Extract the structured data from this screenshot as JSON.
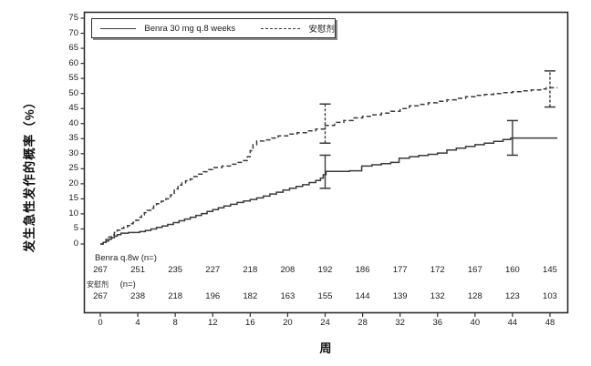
{
  "figure": {
    "y_axis_title": "发生急性发作的概率（%）",
    "x_axis_title": "周",
    "legend": {
      "series1_label": "Benra 30 mg q.8 weeks",
      "series2_label": "安慰剂"
    },
    "risk_table": {
      "row1_label": "Benra q.8w (n=)",
      "row2_label_name": "安慰剂",
      "row2_label_suffix": "(n=)"
    }
  },
  "chart_data": {
    "type": "line",
    "title": "",
    "xlabel": "周",
    "ylabel": "发生急性发作的概率（%）",
    "xlim": [
      0,
      48
    ],
    "ylim": [
      0,
      75
    ],
    "x_ticks": [
      0,
      4,
      8,
      12,
      16,
      20,
      24,
      28,
      32,
      36,
      40,
      44,
      48
    ],
    "y_ticks": [
      0,
      5,
      10,
      15,
      20,
      25,
      30,
      35,
      40,
      45,
      50,
      55,
      60,
      65,
      70,
      75
    ],
    "grid": false,
    "legend_position": "top-left-inside",
    "series": [
      {
        "name": "Benra 30 mg q.8 weeks",
        "style": "solid",
        "step_points": [
          [
            0,
            0
          ],
          [
            0.3,
            0.5
          ],
          [
            0.6,
            1.0
          ],
          [
            0.9,
            1.6
          ],
          [
            1.2,
            2.1
          ],
          [
            1.5,
            2.6
          ],
          [
            1.8,
            3.1
          ],
          [
            2.2,
            3.6
          ],
          [
            3.0,
            3.8
          ],
          [
            4.2,
            4.1
          ],
          [
            4.8,
            4.5
          ],
          [
            5.4,
            5.0
          ],
          [
            6.0,
            5.5
          ],
          [
            6.6,
            6.0
          ],
          [
            7.2,
            6.5
          ],
          [
            7.8,
            7.1
          ],
          [
            8.4,
            7.7
          ],
          [
            9.0,
            8.3
          ],
          [
            9.6,
            8.9
          ],
          [
            10.2,
            9.5
          ],
          [
            10.8,
            10.1
          ],
          [
            11.4,
            10.8
          ],
          [
            12.0,
            11.4
          ],
          [
            12.6,
            12.0
          ],
          [
            13.2,
            12.6
          ],
          [
            13.9,
            13.2
          ],
          [
            14.6,
            13.8
          ],
          [
            15.3,
            14.3
          ],
          [
            16.0,
            14.8
          ],
          [
            16.7,
            15.3
          ],
          [
            17.4,
            15.9
          ],
          [
            18.1,
            16.6
          ],
          [
            18.8,
            17.2
          ],
          [
            19.5,
            17.9
          ],
          [
            20.2,
            18.5
          ],
          [
            20.9,
            19.1
          ],
          [
            21.6,
            19.7
          ],
          [
            22.3,
            20.4
          ],
          [
            23.0,
            21.1
          ],
          [
            23.5,
            21.9
          ],
          [
            23.8,
            23.0
          ],
          [
            24.1,
            24.1
          ],
          [
            26.6,
            24.3
          ],
          [
            27.9,
            25.9
          ],
          [
            29.0,
            26.3
          ],
          [
            30.0,
            26.7
          ],
          [
            31.0,
            27.1
          ],
          [
            31.9,
            28.5
          ],
          [
            33.0,
            29.0
          ],
          [
            34.0,
            29.4
          ],
          [
            35.0,
            29.8
          ],
          [
            36.0,
            30.2
          ],
          [
            37.0,
            31.2
          ],
          [
            38.0,
            31.8
          ],
          [
            39.0,
            32.4
          ],
          [
            40.0,
            33.0
          ],
          [
            41.0,
            33.5
          ],
          [
            42.0,
            34.1
          ],
          [
            43.0,
            34.7
          ],
          [
            43.8,
            35.2
          ],
          [
            48.8,
            35.2
          ]
        ]
      },
      {
        "name": "安慰剂",
        "style": "dashed",
        "step_points": [
          [
            0,
            0
          ],
          [
            0.3,
            0.8
          ],
          [
            0.6,
            1.5
          ],
          [
            0.9,
            2.3
          ],
          [
            1.2,
            3.0
          ],
          [
            1.5,
            3.8
          ],
          [
            1.8,
            4.6
          ],
          [
            2.1,
            5.2
          ],
          [
            2.5,
            5.6
          ],
          [
            2.9,
            6.1
          ],
          [
            3.2,
            6.7
          ],
          [
            3.5,
            7.2
          ],
          [
            3.8,
            7.9
          ],
          [
            4.1,
            8.9
          ],
          [
            4.4,
            9.7
          ],
          [
            4.7,
            10.4
          ],
          [
            5.0,
            11.2
          ],
          [
            5.4,
            11.9
          ],
          [
            5.7,
            12.6
          ],
          [
            6.0,
            13.4
          ],
          [
            6.5,
            14.2
          ],
          [
            7.0,
            15.0
          ],
          [
            7.5,
            16.3
          ],
          [
            7.9,
            18.3
          ],
          [
            8.3,
            19.6
          ],
          [
            8.7,
            20.3
          ],
          [
            9.1,
            21.0
          ],
          [
            9.6,
            21.6
          ],
          [
            10.0,
            22.4
          ],
          [
            10.5,
            23.2
          ],
          [
            11.0,
            24.0
          ],
          [
            11.5,
            24.7
          ],
          [
            12.0,
            25.4
          ],
          [
            13.0,
            25.9
          ],
          [
            14.0,
            26.5
          ],
          [
            14.6,
            27.1
          ],
          [
            15.2,
            27.7
          ],
          [
            15.7,
            29.0
          ],
          [
            16.0,
            31.0
          ],
          [
            16.3,
            33.0
          ],
          [
            16.7,
            34.2
          ],
          [
            17.5,
            34.6
          ],
          [
            18.3,
            35.2
          ],
          [
            19.0,
            35.9
          ],
          [
            20.0,
            36.5
          ],
          [
            21.0,
            37.0
          ],
          [
            22.0,
            37.6
          ],
          [
            23.0,
            38.2
          ],
          [
            24.0,
            39.4
          ],
          [
            25.0,
            40.4
          ],
          [
            26.0,
            41.0
          ],
          [
            27.0,
            41.9
          ],
          [
            28.0,
            42.4
          ],
          [
            29.0,
            42.9
          ],
          [
            30.0,
            43.5
          ],
          [
            31.0,
            44.1
          ],
          [
            32.0,
            45.0
          ],
          [
            33.0,
            45.9
          ],
          [
            34.0,
            46.4
          ],
          [
            35.0,
            46.9
          ],
          [
            36.0,
            47.4
          ],
          [
            37.0,
            47.9
          ],
          [
            38.0,
            48.4
          ],
          [
            39.0,
            48.9
          ],
          [
            40.0,
            49.4
          ],
          [
            41.0,
            49.7
          ],
          [
            42.0,
            50.0
          ],
          [
            43.0,
            50.3
          ],
          [
            44.0,
            50.6
          ],
          [
            45.0,
            50.9
          ],
          [
            46.0,
            51.2
          ],
          [
            47.0,
            51.5
          ],
          [
            47.6,
            51.9
          ],
          [
            48.8,
            51.9
          ]
        ]
      }
    ],
    "error_bars": [
      {
        "series": "Benra 30 mg q.8 weeks",
        "week": 24,
        "center": 24.0,
        "low": 18.5,
        "high": 29.5,
        "stem_style": "solid"
      },
      {
        "series": "Benra 30 mg q.8 weeks",
        "week": 44,
        "center": 35.2,
        "low": 29.5,
        "high": 41.0,
        "stem_style": "solid"
      },
      {
        "series": "安慰剂",
        "week": 24,
        "center": 39.4,
        "low": 33.5,
        "high": 46.5,
        "stem_style": "dashed"
      },
      {
        "series": "安慰剂",
        "week": 48,
        "center": 51.5,
        "low": 45.5,
        "high": 57.5,
        "stem_style": "dashed"
      }
    ],
    "at_risk_table": {
      "weeks": [
        0,
        4,
        8,
        12,
        16,
        20,
        24,
        28,
        32,
        36,
        40,
        44,
        48
      ],
      "rows": [
        {
          "label": "Benra q.8w (n=)",
          "values": [
            267,
            251,
            235,
            227,
            218,
            208,
            192,
            186,
            177,
            172,
            167,
            160,
            145
          ]
        },
        {
          "label": "安慰剂 (n=)",
          "values": [
            267,
            238,
            218,
            196,
            182,
            163,
            155,
            144,
            139,
            132,
            128,
            123,
            103
          ]
        }
      ]
    }
  }
}
